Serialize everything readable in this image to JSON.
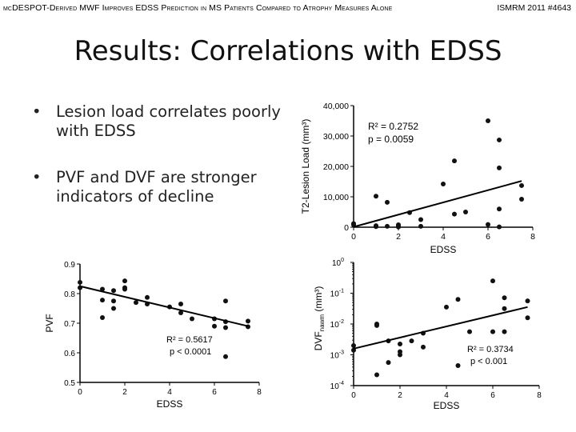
{
  "header": {
    "left": "mcDESPOT-Derived MWF Improves EDSS Prediction in MS Patients Compared to Atrophy Measures Alone",
    "right": "ISMRM 2011 #4643"
  },
  "title": "Results: Correlations with EDSS",
  "bullets": [
    "Lesion load correlates poorly with EDSS",
    "PVF and DVF are stronger indicators of decline"
  ],
  "colors": {
    "text": "#000000",
    "point": "#111111"
  },
  "chart_data": [
    {
      "id": "lesion",
      "type": "scatter",
      "xlabel": "EDSS",
      "ylabel": "T2-Lesion Load (mm³)",
      "xlim": [
        0,
        8
      ],
      "ylim": [
        0,
        40000
      ],
      "xticks": [
        "0",
        "2",
        "4",
        "6",
        "8"
      ],
      "yticks": [
        "0",
        "10,000",
        "20,000",
        "30,000",
        "40,000"
      ],
      "annotations": [
        "R² = 0.2752",
        "p = 0.0059"
      ],
      "points": [
        [
          0,
          1200
        ],
        [
          0,
          800
        ],
        [
          1,
          10200
        ],
        [
          1,
          500
        ],
        [
          1,
          200
        ],
        [
          1.5,
          8200
        ],
        [
          1.5,
          300
        ],
        [
          2,
          400
        ],
        [
          2,
          800
        ],
        [
          2,
          100
        ],
        [
          2.5,
          4800
        ],
        [
          3,
          2500
        ],
        [
          3,
          300
        ],
        [
          4,
          14200
        ],
        [
          4.5,
          21800
        ],
        [
          4.5,
          4300
        ],
        [
          5,
          5000
        ],
        [
          6,
          35000
        ],
        [
          6,
          900
        ],
        [
          6.5,
          28700
        ],
        [
          6.5,
          19500
        ],
        [
          6.5,
          6000
        ],
        [
          6.5,
          100
        ],
        [
          7.5,
          13700
        ],
        [
          7.5,
          9200
        ]
      ],
      "fit": [
        [
          0,
          100
        ],
        [
          7.5,
          15200
        ]
      ]
    },
    {
      "id": "pvf",
      "type": "scatter",
      "xlabel": "EDSS",
      "ylabel": "PVF",
      "xlim": [
        0,
        8
      ],
      "ylim": [
        0.5,
        0.9
      ],
      "xticks": [
        "0",
        "2",
        "4",
        "6",
        "8"
      ],
      "yticks": [
        "0.5",
        "0.6",
        "0.7",
        "0.8",
        "0.9"
      ],
      "annotations": [
        "R² = 0.5617",
        "p < 0.0001"
      ],
      "points": [
        [
          0,
          0.838
        ],
        [
          0,
          0.82
        ],
        [
          1,
          0.815
        ],
        [
          1,
          0.778
        ],
        [
          1,
          0.719
        ],
        [
          1.5,
          0.81
        ],
        [
          1.5,
          0.775
        ],
        [
          1.5,
          0.75
        ],
        [
          2,
          0.843
        ],
        [
          2,
          0.82
        ],
        [
          2,
          0.815
        ],
        [
          2.5,
          0.77
        ],
        [
          3,
          0.787
        ],
        [
          3,
          0.765
        ],
        [
          4,
          0.755
        ],
        [
          4.5,
          0.765
        ],
        [
          4.5,
          0.735
        ],
        [
          5,
          0.715
        ],
        [
          6,
          0.715
        ],
        [
          6,
          0.69
        ],
        [
          6.5,
          0.775
        ],
        [
          6.5,
          0.705
        ],
        [
          6.5,
          0.685
        ],
        [
          6.5,
          0.587
        ],
        [
          7.5,
          0.707
        ],
        [
          7.5,
          0.688
        ]
      ],
      "fit": [
        [
          0,
          0.825
        ],
        [
          7.5,
          0.69
        ]
      ]
    },
    {
      "id": "dvf",
      "type": "scatter",
      "xlabel": "EDSS",
      "ylabel": "DVFnawm (mm³)",
      "ylabel_main": "DVF",
      "ylabel_sub": "nawm",
      "ylabel_unit": " (mm³)",
      "yscale": "log",
      "xlim": [
        0,
        8
      ],
      "ylim": [
        -4,
        0
      ],
      "xticks": [
        "0",
        "2",
        "4",
        "6",
        "8"
      ],
      "ytick_base": [
        "10",
        "10",
        "10",
        "10",
        "10"
      ],
      "ytick_exp": [
        "-4",
        "-3",
        "-2",
        "-1",
        "0"
      ],
      "annotations": [
        "R² = 0.3734",
        "p < 0.001"
      ],
      "points": [
        [
          0,
          -2.7
        ],
        [
          0,
          -2.85
        ],
        [
          1,
          -2.0
        ],
        [
          1,
          -2.05
        ],
        [
          1,
          -3.65
        ],
        [
          1.5,
          -2.55
        ],
        [
          1.5,
          -3.25
        ],
        [
          2,
          -2.65
        ],
        [
          2,
          -2.9
        ],
        [
          2,
          -3.0
        ],
        [
          2.5,
          -2.55
        ],
        [
          3,
          -2.3
        ],
        [
          3,
          -2.75
        ],
        [
          4,
          -1.45
        ],
        [
          4.5,
          -1.2
        ],
        [
          4.5,
          -3.35
        ],
        [
          5,
          -2.25
        ],
        [
          6,
          -2.25
        ],
        [
          6,
          -0.6
        ],
        [
          6.5,
          -1.15
        ],
        [
          6.5,
          -1.5
        ],
        [
          6.5,
          -2.25
        ],
        [
          7.5,
          -1.25
        ],
        [
          7.5,
          -1.8
        ]
      ],
      "fit": [
        [
          0,
          -2.8
        ],
        [
          7.5,
          -1.45
        ]
      ]
    }
  ]
}
